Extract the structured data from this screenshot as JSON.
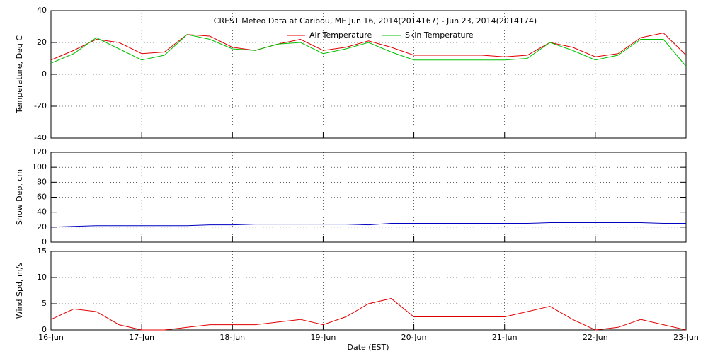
{
  "chart_data": [
    {
      "type": "line",
      "title": "CREST Meteo Data at Caribou, ME   Jun 16, 2014(2014167) - Jun 23, 2014(2014174)",
      "ylabel": "Temperature, Deg C",
      "xlim": [
        0,
        7
      ],
      "ylim": [
        -40,
        40
      ],
      "yticks": [
        -40,
        -20,
        0,
        20,
        40
      ],
      "grid": true,
      "x": [
        0,
        0.25,
        0.5,
        0.75,
        1,
        1.25,
        1.5,
        1.75,
        2,
        2.25,
        2.5,
        2.75,
        3,
        3.25,
        3.5,
        3.75,
        4,
        4.25,
        4.5,
        4.75,
        5,
        5.25,
        5.5,
        5.75,
        6,
        6.25,
        6.5,
        6.75,
        7
      ],
      "series": [
        {
          "name": "Air Temperature",
          "color": "#e00000",
          "values": [
            9,
            15,
            22,
            20,
            13,
            14,
            25,
            24,
            17,
            15,
            19,
            22,
            15,
            17,
            21,
            17,
            12,
            12,
            12,
            12,
            11,
            12,
            20,
            17,
            11,
            13,
            23,
            26,
            12
          ]
        },
        {
          "name": "Skin Temperature",
          "color": "#00c000",
          "values": [
            7,
            13,
            23,
            16,
            9,
            12,
            25,
            22,
            16,
            15,
            19,
            20,
            13,
            16,
            20,
            14,
            9,
            9,
            9,
            9,
            9,
            10,
            20,
            15,
            9,
            12,
            22,
            22,
            5
          ]
        }
      ]
    },
    {
      "type": "line",
      "ylabel": "Snow Dep, cm",
      "xlim": [
        0,
        7
      ],
      "ylim": [
        0,
        120
      ],
      "yticks": [
        0,
        20,
        40,
        60,
        80,
        100,
        120
      ],
      "grid": true,
      "x": [
        0,
        0.25,
        0.5,
        0.75,
        1,
        1.25,
        1.5,
        1.75,
        2,
        2.25,
        2.5,
        2.75,
        3,
        3.25,
        3.5,
        3.75,
        4,
        4.25,
        4.5,
        4.75,
        5,
        5.25,
        5.5,
        5.75,
        6,
        6.25,
        6.5,
        6.75,
        7
      ],
      "series": [
        {
          "name": "Snow Depth",
          "color": "#0000c0",
          "values": [
            20,
            21,
            22,
            22,
            22,
            22,
            22,
            23,
            23,
            24,
            24,
            24,
            24,
            24,
            23,
            25,
            25,
            25,
            25,
            25,
            25,
            25,
            26,
            26,
            26,
            26,
            26,
            25,
            25
          ]
        }
      ]
    },
    {
      "type": "line",
      "ylabel": "Wind Spd, m/s",
      "xlabel": "Date (EST)",
      "xlim": [
        0,
        7
      ],
      "ylim": [
        0,
        15
      ],
      "yticks": [
        0,
        5,
        10,
        15
      ],
      "grid": true,
      "xticks": [
        {
          "value": 0,
          "label": "16-Jun"
        },
        {
          "value": 1,
          "label": "17-Jun"
        },
        {
          "value": 2,
          "label": "18-Jun"
        },
        {
          "value": 3,
          "label": "19-Jun"
        },
        {
          "value": 4,
          "label": "20-Jun"
        },
        {
          "value": 5,
          "label": "21-Jun"
        },
        {
          "value": 6,
          "label": "22-Jun"
        },
        {
          "value": 7,
          "label": "23-Jun"
        }
      ],
      "x": [
        0,
        0.25,
        0.5,
        0.75,
        1,
        1.25,
        1.5,
        1.75,
        2,
        2.25,
        2.5,
        2.75,
        3,
        3.25,
        3.5,
        3.75,
        4,
        4.25,
        4.5,
        4.75,
        5,
        5.25,
        5.5,
        5.75,
        6,
        6.25,
        6.5,
        6.75,
        7
      ],
      "series": [
        {
          "name": "Wind Speed",
          "color": "#e00000",
          "values": [
            2,
            4,
            3.5,
            1,
            0,
            0,
            0.5,
            1,
            1,
            1,
            1.5,
            2,
            1,
            2.5,
            5,
            6,
            2.5,
            2.5,
            2.5,
            2.5,
            2.5,
            3.5,
            4.5,
            2,
            0,
            0.5,
            2,
            1,
            0
          ]
        }
      ]
    }
  ]
}
